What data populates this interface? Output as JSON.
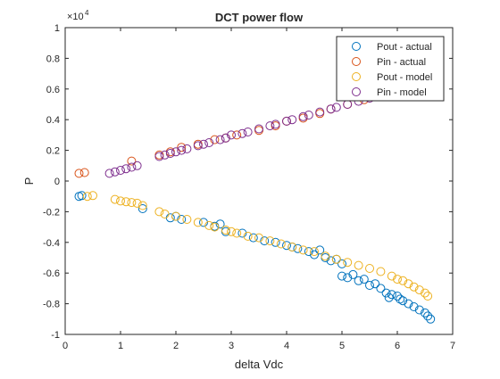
{
  "chart_data": {
    "type": "scatter",
    "title": "DCT power flow",
    "xlabel": "delta Vdc",
    "ylabel": "P",
    "xlim": [
      0,
      7
    ],
    "ylim": [
      -10000,
      10000
    ],
    "x_ticks": [
      "0",
      "1",
      "2",
      "3",
      "4",
      "5",
      "6",
      "7"
    ],
    "y_ticks": [
      "-1",
      "-0.8",
      "-0.6",
      "-0.4",
      "-0.2",
      "0",
      "0.2",
      "0.4",
      "0.6",
      "0.8",
      "1"
    ],
    "y_exponent": {
      "base": "×10",
      "power": "4"
    },
    "grid": false,
    "legend": "top-right",
    "marker": "open-circle",
    "series": [
      {
        "name": "Pout - actual",
        "color": "#0072BD",
        "x": [
          0.25,
          0.3,
          1.4,
          1.9,
          2.0,
          2.1,
          2.5,
          2.7,
          2.8,
          2.9,
          3.2,
          3.4,
          3.6,
          3.8,
          4.0,
          4.1,
          4.2,
          4.4,
          4.5,
          4.6,
          4.7,
          4.8,
          4.9,
          5.0,
          5.0,
          5.1,
          5.2,
          5.3,
          5.4,
          5.5,
          5.6,
          5.7,
          5.8,
          5.85,
          5.9,
          6.0,
          6.05,
          6.1,
          6.2,
          6.3,
          6.4,
          6.5,
          6.55,
          6.6
        ],
        "y": [
          -1000,
          -950,
          -1800,
          -2400,
          -2300,
          -2500,
          -2700,
          -2950,
          -2800,
          -3300,
          -3400,
          -3700,
          -3900,
          -4000,
          -4200,
          -4300,
          -4400,
          -4600,
          -4800,
          -4500,
          -5000,
          -5200,
          -5100,
          -5400,
          -6200,
          -6300,
          -6100,
          -6500,
          -6400,
          -6800,
          -6700,
          -7000,
          -7300,
          -7600,
          -7400,
          -7500,
          -7700,
          -7800,
          -8000,
          -8200,
          -8400,
          -8600,
          -8800,
          -9000
        ]
      },
      {
        "name": "Pin - actual",
        "color": "#D95319",
        "x": [
          0.25,
          0.35,
          1.2,
          1.7,
          1.9,
          2.1,
          2.4,
          2.7,
          2.9,
          3.1,
          3.5,
          3.8,
          4.0,
          4.3,
          4.6,
          4.8,
          5.1,
          5.4
        ],
        "y": [
          500,
          550,
          1300,
          1700,
          1900,
          2200,
          2400,
          2700,
          2800,
          3000,
          3300,
          3600,
          3900,
          4100,
          4400,
          4700,
          5000,
          5300
        ]
      },
      {
        "name": "Pout - model",
        "color": "#EDB120",
        "x": [
          0.4,
          0.5,
          0.9,
          1.0,
          1.1,
          1.2,
          1.3,
          1.4,
          1.7,
          1.8,
          2.0,
          2.2,
          2.4,
          2.6,
          2.7,
          2.9,
          3.0,
          3.1,
          3.3,
          3.5,
          3.7,
          3.9,
          4.1,
          4.3,
          4.5,
          4.7,
          4.9,
          5.1,
          5.3,
          5.5,
          5.7,
          5.9,
          6.0,
          6.1,
          6.2,
          6.3,
          6.4,
          6.5,
          6.55
        ],
        "y": [
          -1000,
          -950,
          -1200,
          -1300,
          -1350,
          -1400,
          -1450,
          -1600,
          -2000,
          -2150,
          -2300,
          -2500,
          -2700,
          -2900,
          -3000,
          -3200,
          -3300,
          -3400,
          -3600,
          -3700,
          -3900,
          -4100,
          -4300,
          -4500,
          -4600,
          -4900,
          -5100,
          -5300,
          -5500,
          -5700,
          -5900,
          -6200,
          -6400,
          -6500,
          -6700,
          -6900,
          -7100,
          -7300,
          -7500
        ]
      },
      {
        "name": "Pin - model",
        "color": "#7E2F8E",
        "x": [
          0.8,
          0.9,
          1.0,
          1.1,
          1.2,
          1.3,
          1.7,
          1.8,
          1.9,
          2.0,
          2.1,
          2.2,
          2.4,
          2.5,
          2.6,
          2.8,
          2.9,
          3.0,
          3.2,
          3.3,
          3.5,
          3.7,
          3.8,
          4.0,
          4.1,
          4.3,
          4.4,
          4.6,
          4.8,
          4.9,
          5.1,
          5.3,
          5.5,
          5.7
        ],
        "y": [
          500,
          600,
          700,
          800,
          900,
          1000,
          1600,
          1700,
          1800,
          1900,
          2000,
          2100,
          2300,
          2400,
          2500,
          2700,
          2800,
          3000,
          3100,
          3200,
          3400,
          3600,
          3700,
          3900,
          4000,
          4200,
          4300,
          4500,
          4700,
          4800,
          5000,
          5200,
          5400,
          5600
        ]
      }
    ]
  }
}
